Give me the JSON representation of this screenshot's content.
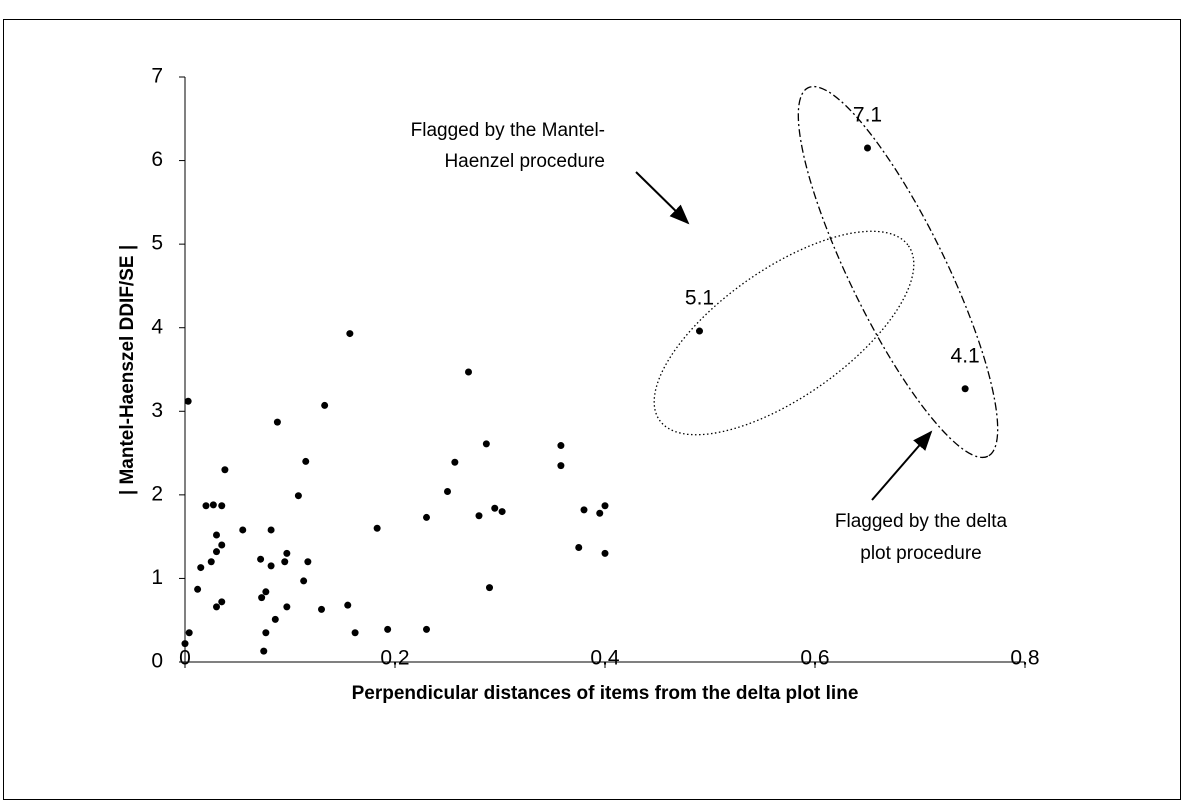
{
  "chart_data": {
    "type": "scatter",
    "x_label": "Perpendicular distances of items from the delta plot line",
    "y_label": "| Mantel-Haenszel DDIF/SE |",
    "xlim": [
      0,
      0.8
    ],
    "xticks": [
      0,
      0.2,
      0.4,
      0.6,
      0.8
    ],
    "ylim": [
      0,
      7
    ],
    "yticks": [
      0,
      1,
      2,
      3,
      4,
      5,
      6,
      7
    ],
    "color": "#000000",
    "x": [
      0.0,
      0.004,
      0.003,
      0.012,
      0.015,
      0.02,
      0.027,
      0.035,
      0.025,
      0.03,
      0.03,
      0.035,
      0.03,
      0.035,
      0.038,
      0.055,
      0.072,
      0.073,
      0.075,
      0.077,
      0.077,
      0.082,
      0.082,
      0.086,
      0.088,
      0.095,
      0.097,
      0.097,
      0.108,
      0.113,
      0.115,
      0.117,
      0.13,
      0.133,
      0.155,
      0.157,
      0.162,
      0.183,
      0.193,
      0.23,
      0.23,
      0.25,
      0.257,
      0.27,
      0.28,
      0.287,
      0.29,
      0.295,
      0.302,
      0.358,
      0.358,
      0.375,
      0.38,
      0.395,
      0.4,
      0.4,
      0.49,
      0.65,
      0.743
    ],
    "values": [
      0.22,
      0.35,
      3.12,
      0.87,
      1.13,
      1.87,
      1.88,
      1.87,
      1.2,
      1.52,
      1.32,
      1.4,
      0.66,
      0.72,
      2.3,
      1.58,
      1.23,
      0.77,
      0.13,
      0.84,
      0.35,
      1.15,
      1.58,
      0.51,
      2.87,
      1.2,
      1.3,
      0.66,
      1.99,
      0.97,
      2.4,
      1.2,
      0.63,
      3.07,
      0.68,
      3.93,
      0.35,
      1.6,
      0.39,
      1.73,
      0.39,
      2.04,
      2.39,
      3.47,
      1.75,
      2.61,
      0.89,
      1.84,
      1.8,
      2.59,
      2.35,
      1.37,
      1.82,
      1.78,
      1.87,
      1.3,
      3.96,
      6.15,
      3.27
    ],
    "value_labels": [
      null,
      null,
      null,
      null,
      null,
      null,
      null,
      null,
      null,
      null,
      null,
      null,
      null,
      null,
      null,
      null,
      null,
      null,
      null,
      null,
      null,
      null,
      null,
      null,
      null,
      null,
      null,
      null,
      null,
      null,
      null,
      null,
      null,
      null,
      null,
      null,
      null,
      null,
      null,
      null,
      null,
      null,
      null,
      null,
      null,
      null,
      null,
      null,
      null,
      null,
      null,
      null,
      null,
      null,
      null,
      null,
      "5.1",
      "7.1",
      "4.1"
    ],
    "annotations": [
      [
        "Flagged by the Mantel-",
        "Haenzel procedure"
      ],
      [
        "Flagged by the delta",
        "plot procedure"
      ]
    ]
  }
}
